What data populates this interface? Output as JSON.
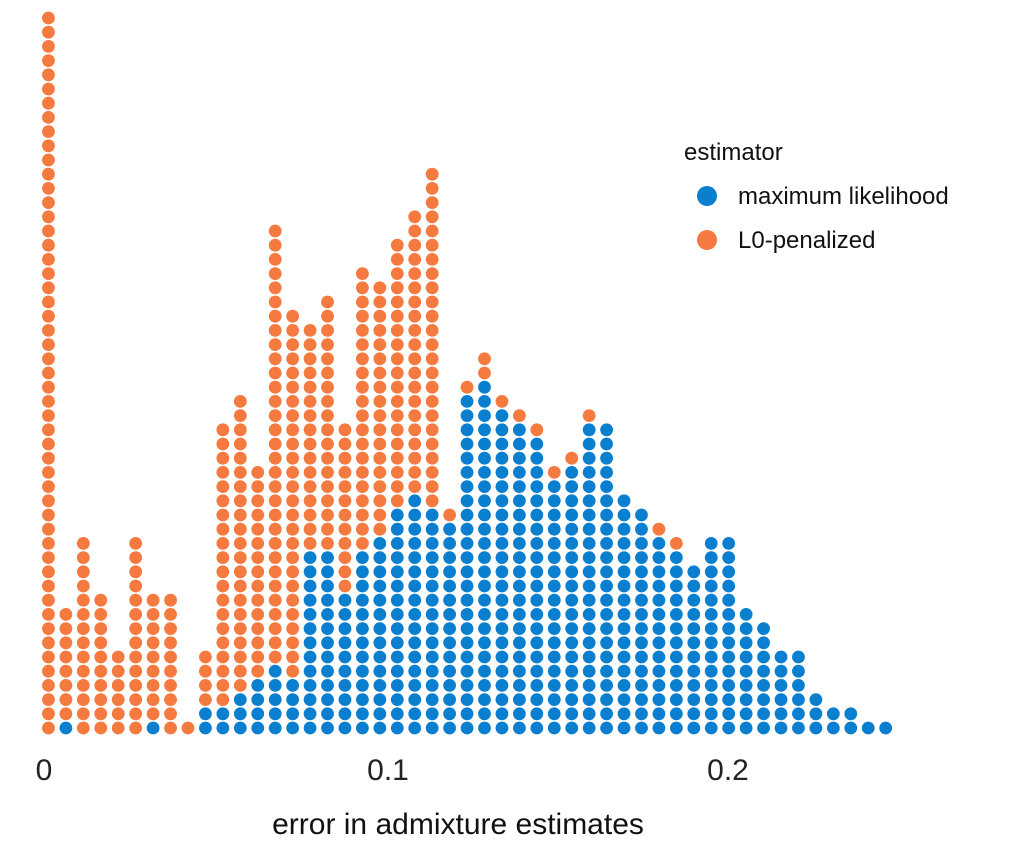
{
  "colors": {
    "maximum_likelihood": "#0a7fcf",
    "l0_penalized": "#f57a3f"
  },
  "chart_data": {
    "type": "scatter",
    "subtype": "stacked dot plot",
    "xlabel": "error in admixture estimates",
    "ylabel": "",
    "xlim": [
      0,
      0.25
    ],
    "x_ticks": [
      0,
      0.1,
      0.2
    ],
    "x_tick_labels": [
      "0",
      "0.1",
      "0.2"
    ],
    "grid": false,
    "legend": {
      "title": "estimator",
      "position": "top-right",
      "entries": [
        "maximum likelihood",
        "L0-penalized"
      ]
    },
    "x": [
      0.0013,
      0.0064,
      0.0115,
      0.0166,
      0.0217,
      0.0268,
      0.0319,
      0.037,
      0.0421,
      0.0472,
      0.0523,
      0.0574,
      0.0625,
      0.0676,
      0.0727,
      0.0778,
      0.0829,
      0.088,
      0.0931,
      0.0982,
      0.1033,
      0.1084,
      0.1135,
      0.1186,
      0.1237,
      0.1288,
      0.1339,
      0.139,
      0.1441,
      0.1492,
      0.1543,
      0.1594,
      0.1645,
      0.1696,
      0.1747,
      0.1798,
      0.1849,
      0.19,
      0.1951,
      0.2002,
      0.2053,
      0.2104,
      0.2155,
      0.2206,
      0.2257,
      0.2308,
      0.2359,
      0.241,
      0.2461
    ],
    "series": [
      {
        "name": "maximum likelihood",
        "counts": [
          0,
          1,
          0,
          0,
          0,
          0,
          1,
          0,
          0,
          2,
          2,
          3,
          4,
          5,
          4,
          13,
          13,
          10,
          13,
          14,
          16,
          17,
          16,
          15,
          24,
          25,
          23,
          22,
          21,
          18,
          19,
          22,
          22,
          17,
          16,
          14,
          13,
          12,
          14,
          14,
          9,
          8,
          6,
          6,
          3,
          2,
          2,
          1,
          1
        ]
      },
      {
        "name": "L0-penalized",
        "counts": [
          51,
          8,
          14,
          10,
          6,
          14,
          9,
          10,
          1,
          4,
          20,
          21,
          15,
          31,
          26,
          16,
          18,
          12,
          20,
          18,
          19,
          20,
          24,
          1,
          1,
          2,
          1,
          1,
          1,
          1,
          1,
          1,
          0,
          0,
          0,
          1,
          1,
          0,
          0,
          0,
          0,
          0,
          0,
          0,
          0,
          0,
          0,
          0,
          0
        ]
      }
    ]
  }
}
